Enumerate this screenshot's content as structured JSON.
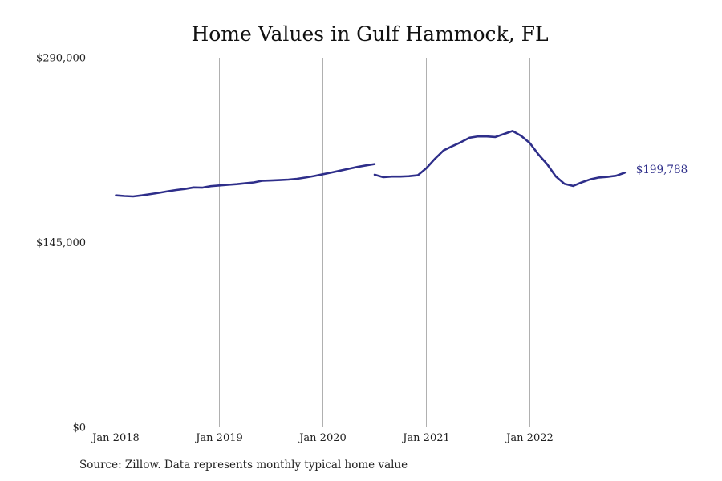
{
  "chart_data": {
    "type": "line",
    "title": "Home Values in Gulf Hammock, FL",
    "xlabel": "",
    "ylabel": "",
    "ylim": [
      0,
      290000
    ],
    "y_ticks": [
      "$290,000",
      "$145,000",
      "$0"
    ],
    "y_tick_values": [
      290000,
      145000,
      0
    ],
    "x_ticks": [
      "Jan 2018",
      "Jan 2019",
      "Jan 2020",
      "Jan 2021",
      "Jan 2022"
    ],
    "x_tick_months": [
      0,
      12,
      24,
      36,
      48
    ],
    "grid": "vertical",
    "line_color": "#2e2e8a",
    "end_label": "$199,788",
    "segments": [
      {
        "start_month": 0,
        "values": [
          182000,
          181500,
          181200,
          182000,
          183000,
          184000,
          185200,
          186200,
          187000,
          188200,
          188000,
          189200,
          189800,
          190300,
          190800,
          191500,
          192200,
          193500,
          193700,
          194000,
          194400,
          195000,
          196000,
          197200,
          198600,
          200000,
          201400,
          202900,
          204300,
          205500,
          206600
        ]
      },
      {
        "start_month": 30,
        "values": [
          198200,
          196300,
          196800,
          196800,
          197100,
          197800,
          203300,
          210800,
          217300,
          220600,
          223700,
          227200,
          228300,
          228200,
          227800,
          230200,
          232500,
          228600,
          223000,
          214000,
          206500,
          196900,
          191100,
          189400,
          192200,
          194600,
          196000,
          196500,
          197400,
          199788
        ]
      }
    ]
  },
  "source_note": "Source: Zillow. Data represents monthly typical home value"
}
